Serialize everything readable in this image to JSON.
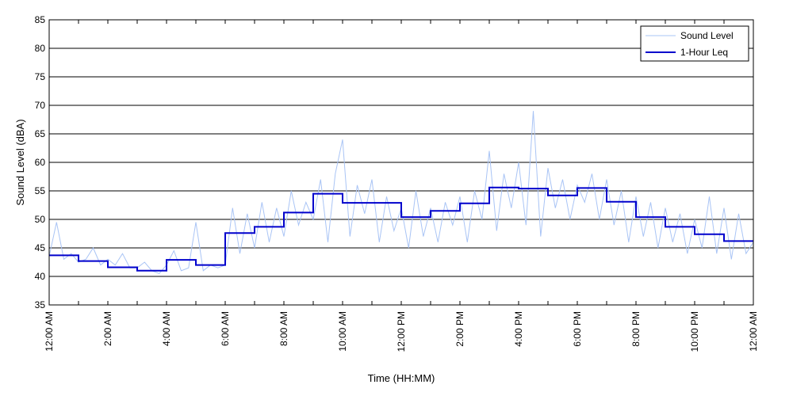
{
  "chart_data": {
    "type": "line",
    "xlabel": "Time (HH:MM)",
    "ylabel": "Sound Level (dBA)",
    "ylim": [
      35,
      85
    ],
    "y_ticks": [
      35,
      40,
      45,
      50,
      55,
      60,
      65,
      70,
      75,
      80,
      85
    ],
    "xlim_hours": [
      0,
      24
    ],
    "x_ticks": [
      {
        "hour": 0,
        "label": "12:00 AM"
      },
      {
        "hour": 2,
        "label": "2:00 AM"
      },
      {
        "hour": 4,
        "label": "4:00 AM"
      },
      {
        "hour": 6,
        "label": "6:00 AM"
      },
      {
        "hour": 8,
        "label": "8:00 AM"
      },
      {
        "hour": 10,
        "label": "10:00 AM"
      },
      {
        "hour": 12,
        "label": "12:00 PM"
      },
      {
        "hour": 14,
        "label": "2:00 PM"
      },
      {
        "hour": 16,
        "label": "4:00 PM"
      },
      {
        "hour": 18,
        "label": "6:00 PM"
      },
      {
        "hour": 20,
        "label": "8:00 PM"
      },
      {
        "hour": 22,
        "label": "10:00 PM"
      },
      {
        "hour": 24,
        "label": "12:00 AM"
      }
    ],
    "grid": "horizontal",
    "legend_position": "top-right",
    "series": [
      {
        "name": "Sound Level",
        "color": "#a9c4f5",
        "x_hours": [
          0,
          0.25,
          0.5,
          0.75,
          1,
          1.25,
          1.5,
          1.75,
          2,
          2.25,
          2.5,
          2.75,
          3,
          3.25,
          3.5,
          3.75,
          4,
          4.25,
          4.5,
          4.75,
          5,
          5.25,
          5.5,
          5.75,
          6,
          6.25,
          6.5,
          6.75,
          7,
          7.25,
          7.5,
          7.75,
          8,
          8.25,
          8.5,
          8.75,
          9,
          9.25,
          9.5,
          9.75,
          10,
          10.25,
          10.5,
          10.75,
          11,
          11.25,
          11.5,
          11.75,
          12,
          12.25,
          12.5,
          12.75,
          13,
          13.25,
          13.5,
          13.75,
          14,
          14.25,
          14.5,
          14.75,
          15,
          15.25,
          15.5,
          15.75,
          16,
          16.25,
          16.5,
          16.75,
          17,
          17.25,
          17.5,
          17.75,
          18,
          18.25,
          18.5,
          18.75,
          19,
          19.25,
          19.5,
          19.75,
          20,
          20.25,
          20.5,
          20.75,
          21,
          21.25,
          21.5,
          21.75,
          22,
          22.25,
          22.5,
          22.75,
          23,
          23.25,
          23.5,
          23.75,
          24
        ],
        "values": [
          43.5,
          49.5,
          43,
          44,
          42.5,
          43,
          45,
          42,
          43,
          42,
          44,
          41.5,
          41.5,
          42.5,
          41,
          40.5,
          42,
          44.5,
          41,
          41.5,
          49.5,
          41,
          42,
          41.5,
          42,
          52,
          44,
          51,
          45,
          53,
          46,
          52,
          47,
          55,
          49,
          53,
          50,
          57,
          46,
          58,
          64,
          47,
          56,
          51,
          57,
          46,
          54,
          48,
          52,
          45,
          55,
          47,
          52,
          46,
          53,
          49,
          54,
          46,
          55,
          50,
          62,
          48,
          58,
          52,
          60,
          49,
          69,
          47,
          59,
          52,
          57,
          50,
          56,
          53,
          58,
          50,
          57,
          49,
          55,
          46,
          54,
          47,
          53,
          45,
          52,
          46,
          51,
          44,
          50,
          45,
          54,
          44,
          52,
          43,
          51,
          44,
          46
        ]
      },
      {
        "name": "1-Hour Leq",
        "color": "#0000cc",
        "step_start_hours": [
          0,
          1,
          2,
          3,
          4,
          5,
          6,
          7,
          8,
          9,
          10,
          11,
          12,
          13,
          14,
          15,
          16,
          17,
          18,
          19,
          20,
          21,
          22,
          23
        ],
        "values": [
          43.7,
          42.7,
          41.6,
          41.0,
          42.9,
          42.0,
          47.6,
          48.7,
          51.2,
          54.5,
          52.9,
          52.9,
          50.4,
          51.5,
          52.8,
          55.6,
          55.4,
          54.2,
          55.5,
          53.1,
          50.4,
          48.7,
          47.4,
          46.2
        ]
      }
    ]
  }
}
